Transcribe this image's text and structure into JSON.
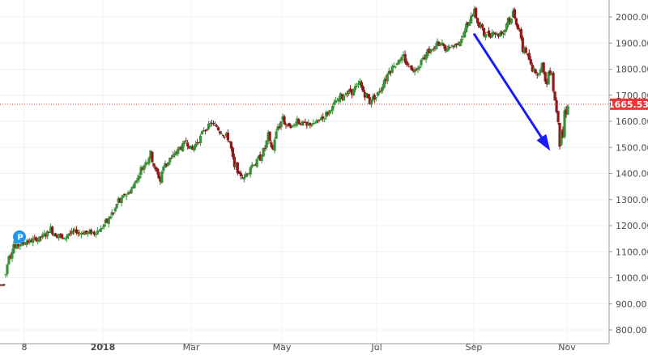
{
  "chart_data": {
    "type": "candlestick",
    "title": "",
    "xlabel": "",
    "ylabel": "",
    "ylim": [
      770,
      2060
    ],
    "y_ticks": [
      "800.00",
      "900.00",
      "1000.00",
      "1100.00",
      "1200.00",
      "1300.00",
      "1400.00",
      "1500.00",
      "1600.00",
      "1700.00",
      "1800.00",
      "1900.00",
      "2000.00"
    ],
    "x_ticks": [
      {
        "label": "8",
        "bold": false
      },
      {
        "label": "2018",
        "bold": true
      },
      {
        "label": "Mar",
        "bold": false
      },
      {
        "label": "May",
        "bold": false
      },
      {
        "label": "Jul",
        "bold": false
      },
      {
        "label": "Sep",
        "bold": false
      },
      {
        "label": "Nov",
        "bold": false
      }
    ],
    "grid": true,
    "colors": {
      "up": "#3a8f3a",
      "down": "#8b1a1a",
      "price_line": "#e53935",
      "arrow": "#1a1aff",
      "marker": "#2196f3"
    },
    "current_price": {
      "value": 1665.53,
      "label": "1665.53"
    },
    "marker": {
      "label": "P",
      "value": 1160
    },
    "arrow": {
      "from_value": 1930,
      "to_value": 1490
    },
    "anchors": [
      [
        0,
        975,
        975
      ],
      [
        6,
        1060,
        1090
      ],
      [
        12,
        1110,
        1130
      ],
      [
        20,
        1125,
        1130
      ],
      [
        28,
        1135,
        1140
      ],
      [
        40,
        1140,
        1150
      ],
      [
        50,
        1155,
        1165
      ],
      [
        58,
        1180,
        1190
      ],
      [
        66,
        1180,
        1160
      ],
      [
        72,
        1140,
        1150
      ],
      [
        80,
        1165,
        1170
      ],
      [
        90,
        1170,
        1180
      ],
      [
        100,
        1170,
        1175
      ],
      [
        110,
        1165,
        1175
      ],
      [
        118,
        1175,
        1185
      ],
      [
        126,
        1200,
        1215
      ],
      [
        134,
        1230,
        1250
      ],
      [
        142,
        1280,
        1300
      ],
      [
        150,
        1310,
        1320
      ],
      [
        158,
        1330,
        1340
      ],
      [
        164,
        1360,
        1380
      ],
      [
        170,
        1400,
        1420
      ],
      [
        176,
        1430,
        1450
      ],
      [
        182,
        1470,
        1480
      ],
      [
        188,
        1420,
        1410
      ],
      [
        194,
        1390,
        1370
      ],
      [
        200,
        1420,
        1440
      ],
      [
        206,
        1440,
        1460
      ],
      [
        212,
        1470,
        1480
      ],
      [
        218,
        1490,
        1500
      ],
      [
        226,
        1520,
        1525
      ],
      [
        234,
        1500,
        1490
      ],
      [
        240,
        1510,
        1520
      ],
      [
        248,
        1560,
        1570
      ],
      [
        256,
        1600,
        1590
      ],
      [
        262,
        1590,
        1580
      ],
      [
        268,
        1570,
        1560
      ],
      [
        274,
        1560,
        1540
      ],
      [
        280,
        1530,
        1520
      ],
      [
        286,
        1450,
        1420
      ],
      [
        292,
        1400,
        1390
      ],
      [
        298,
        1390,
        1380
      ],
      [
        304,
        1420,
        1410
      ],
      [
        310,
        1420,
        1440
      ],
      [
        316,
        1440,
        1460
      ],
      [
        322,
        1470,
        1490
      ],
      [
        328,
        1530,
        1550
      ],
      [
        334,
        1510,
        1490
      ],
      [
        340,
        1560,
        1580
      ],
      [
        346,
        1600,
        1620
      ],
      [
        352,
        1590,
        1580
      ],
      [
        358,
        1570,
        1580
      ],
      [
        364,
        1600,
        1610
      ],
      [
        370,
        1600,
        1590
      ],
      [
        376,
        1590,
        1580
      ],
      [
        382,
        1580,
        1590
      ],
      [
        388,
        1580,
        1600
      ],
      [
        394,
        1600,
        1620
      ],
      [
        400,
        1620,
        1630
      ],
      [
        406,
        1640,
        1650
      ],
      [
        412,
        1660,
        1680
      ],
      [
        418,
        1680,
        1700
      ],
      [
        424,
        1700,
        1710
      ],
      [
        430,
        1700,
        1720
      ],
      [
        436,
        1720,
        1730
      ],
      [
        442,
        1740,
        1750
      ],
      [
        448,
        1720,
        1700
      ],
      [
        454,
        1690,
        1670
      ],
      [
        460,
        1680,
        1690
      ],
      [
        466,
        1700,
        1720
      ],
      [
        472,
        1740,
        1760
      ],
      [
        478,
        1780,
        1800
      ],
      [
        484,
        1800,
        1820
      ],
      [
        490,
        1820,
        1840
      ],
      [
        496,
        1840,
        1850
      ],
      [
        502,
        1830,
        1810
      ],
      [
        508,
        1800,
        1790
      ],
      [
        514,
        1800,
        1810
      ],
      [
        520,
        1820,
        1850
      ],
      [
        526,
        1860,
        1870
      ],
      [
        532,
        1860,
        1880
      ],
      [
        538,
        1880,
        1900
      ],
      [
        544,
        1890,
        1900
      ],
      [
        550,
        1880,
        1870
      ],
      [
        556,
        1880,
        1890
      ],
      [
        562,
        1890,
        1900
      ],
      [
        568,
        1900,
        1920
      ],
      [
        574,
        1940,
        1970
      ],
      [
        580,
        2000,
        2010
      ],
      [
        585,
        2010,
        2030
      ],
      [
        590,
        1990,
        1960
      ],
      [
        596,
        1950,
        1930
      ],
      [
        602,
        1920,
        1930
      ],
      [
        608,
        1940,
        1950
      ],
      [
        614,
        1940,
        1930
      ],
      [
        620,
        1930,
        1940
      ],
      [
        626,
        1960,
        2000
      ],
      [
        632,
        2010,
        2020
      ],
      [
        638,
        1990,
        1960
      ],
      [
        644,
        1900,
        1870
      ],
      [
        650,
        1860,
        1850
      ],
      [
        656,
        1830,
        1790
      ],
      [
        662,
        1780,
        1770
      ],
      [
        668,
        1800,
        1820
      ],
      [
        674,
        1790,
        1740
      ],
      [
        680,
        1760,
        1790
      ],
      [
        686,
        1700,
        1640
      ],
      [
        690,
        1580,
        1510
      ],
      [
        693,
        1490,
        1560
      ],
      [
        696,
        1600,
        1640
      ],
      [
        700,
        1650,
        1665
      ]
    ]
  }
}
